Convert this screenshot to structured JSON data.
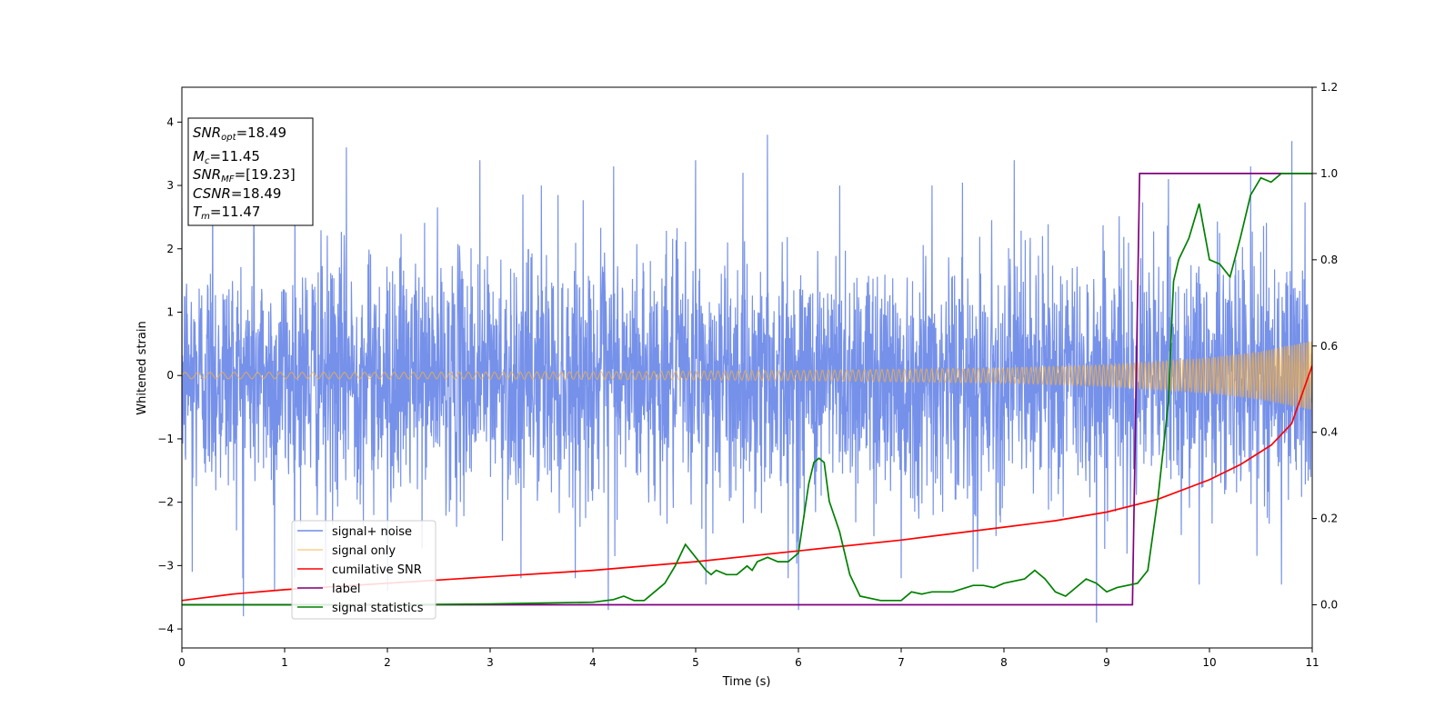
{
  "chart_data": {
    "type": "line",
    "title": "",
    "xlabel": "Time (s)",
    "ylabel": "Whitened strain",
    "ylabel_right": "",
    "xlim": [
      0,
      11
    ],
    "ylim": [
      -4.3,
      4.55
    ],
    "ylim_right": [
      -0.1,
      1.2
    ],
    "xticks": [
      0,
      1,
      2,
      3,
      4,
      5,
      6,
      7,
      8,
      9,
      10,
      11
    ],
    "yticks": [
      -4,
      -3,
      -2,
      -1,
      0,
      1,
      2,
      3,
      4
    ],
    "yticks_right": [
      0.0,
      0.2,
      0.4,
      0.6,
      0.8,
      1.0,
      1.2
    ],
    "grid": false,
    "legend_position": "lower-left",
    "stats_box": [
      {
        "symbol": "SNR",
        "sub": "opt",
        "value": "=18.49"
      },
      {
        "symbol": "M",
        "sub": "c",
        "value": "=11.45"
      },
      {
        "symbol": "SNR",
        "sub": "MF",
        "value": "=[19.23]"
      },
      {
        "symbol": "CSNR",
        "sub": "",
        "value": "=18.49"
      },
      {
        "symbol": "T",
        "sub": "m",
        "value": "=11.47"
      }
    ],
    "series": [
      {
        "name": "signal+ noise",
        "color": "#6f8be8",
        "axis": "left",
        "kind": "noise",
        "noise_sigma": 0.95,
        "upper_peaks": [
          [
            0.3,
            3.3
          ],
          [
            0.7,
            3.1
          ],
          [
            1.1,
            3.4
          ],
          [
            1.6,
            3.6
          ],
          [
            2.9,
            3.4
          ],
          [
            3.5,
            3.0
          ],
          [
            4.2,
            3.3
          ],
          [
            5.0,
            3.4
          ],
          [
            5.7,
            3.8
          ],
          [
            6.4,
            3.0
          ],
          [
            7.3,
            3.0
          ],
          [
            8.1,
            3.4
          ],
          [
            8.9,
            3.7
          ],
          [
            9.6,
            3.1
          ],
          [
            10.4,
            3.3
          ],
          [
            10.8,
            3.7
          ]
        ],
        "lower_peaks": [
          [
            0.1,
            -3.1
          ],
          [
            0.6,
            -3.8
          ],
          [
            0.9,
            -3.4
          ],
          [
            1.4,
            -3.3
          ],
          [
            2.0,
            -3.4
          ],
          [
            3.3,
            -3.2
          ],
          [
            4.15,
            -3.7
          ],
          [
            5.1,
            -3.3
          ],
          [
            5.9,
            -3.2
          ],
          [
            6.0,
            -3.7
          ],
          [
            7.0,
            -3.2
          ],
          [
            7.7,
            -3.1
          ],
          [
            8.9,
            -3.9
          ],
          [
            9.9,
            -3.3
          ],
          [
            10.7,
            -3.3
          ]
        ]
      },
      {
        "name": "signal only",
        "color": "#f5b041",
        "axis": "left",
        "kind": "chirp",
        "amplitude_envelope": {
          "t": [
            0,
            2,
            4,
            6,
            8,
            9,
            10,
            10.5,
            11
          ],
          "a": [
            0.05,
            0.05,
            0.06,
            0.08,
            0.12,
            0.17,
            0.28,
            0.38,
            0.55
          ]
        }
      },
      {
        "name": "cumilative SNR",
        "color": "#ff0000",
        "axis": "right",
        "x": [
          0,
          0.5,
          1,
          2,
          3,
          4,
          5,
          6,
          7,
          8,
          8.5,
          9,
          9.5,
          10,
          10.3,
          10.6,
          10.8,
          11
        ],
        "y": [
          0.01,
          0.025,
          0.035,
          0.05,
          0.065,
          0.08,
          0.1,
          0.125,
          0.15,
          0.18,
          0.195,
          0.215,
          0.245,
          0.29,
          0.325,
          0.37,
          0.42,
          0.555
        ]
      },
      {
        "name": "label",
        "color": "#800080",
        "axis": "right",
        "x": [
          0,
          9.25,
          9.32,
          11
        ],
        "y": [
          0.0,
          0.0,
          1.0,
          1.0
        ]
      },
      {
        "name": "signal statistics",
        "color": "#008000",
        "axis": "right",
        "x": [
          0,
          1,
          2,
          3,
          3.5,
          4,
          4.2,
          4.3,
          4.4,
          4.5,
          4.6,
          4.7,
          4.8,
          4.9,
          5.0,
          5.1,
          5.15,
          5.2,
          5.3,
          5.4,
          5.5,
          5.55,
          5.6,
          5.7,
          5.8,
          5.9,
          6.0,
          6.1,
          6.15,
          6.2,
          6.25,
          6.3,
          6.4,
          6.5,
          6.6,
          6.8,
          7.0,
          7.1,
          7.2,
          7.3,
          7.5,
          7.7,
          7.8,
          7.9,
          8.0,
          8.2,
          8.3,
          8.4,
          8.5,
          8.6,
          8.7,
          8.8,
          8.9,
          9.0,
          9.1,
          9.3,
          9.4,
          9.5,
          9.6,
          9.65,
          9.7,
          9.8,
          9.9,
          10.0,
          10.1,
          10.2,
          10.3,
          10.4,
          10.5,
          10.6,
          10.7,
          10.8,
          10.9,
          11.0
        ],
        "y": [
          0.0,
          0.0,
          0.0,
          0.002,
          0.004,
          0.006,
          0.012,
          0.02,
          0.01,
          0.01,
          0.03,
          0.05,
          0.09,
          0.14,
          0.11,
          0.08,
          0.07,
          0.08,
          0.07,
          0.07,
          0.09,
          0.08,
          0.1,
          0.11,
          0.1,
          0.1,
          0.12,
          0.28,
          0.33,
          0.34,
          0.33,
          0.24,
          0.17,
          0.07,
          0.02,
          0.01,
          0.01,
          0.03,
          0.025,
          0.03,
          0.03,
          0.045,
          0.045,
          0.04,
          0.05,
          0.06,
          0.08,
          0.06,
          0.03,
          0.02,
          0.04,
          0.06,
          0.05,
          0.03,
          0.04,
          0.05,
          0.08,
          0.25,
          0.47,
          0.75,
          0.8,
          0.85,
          0.93,
          0.8,
          0.79,
          0.76,
          0.85,
          0.95,
          0.99,
          0.98,
          1.0,
          1.0,
          1.0,
          1.0
        ]
      }
    ]
  }
}
